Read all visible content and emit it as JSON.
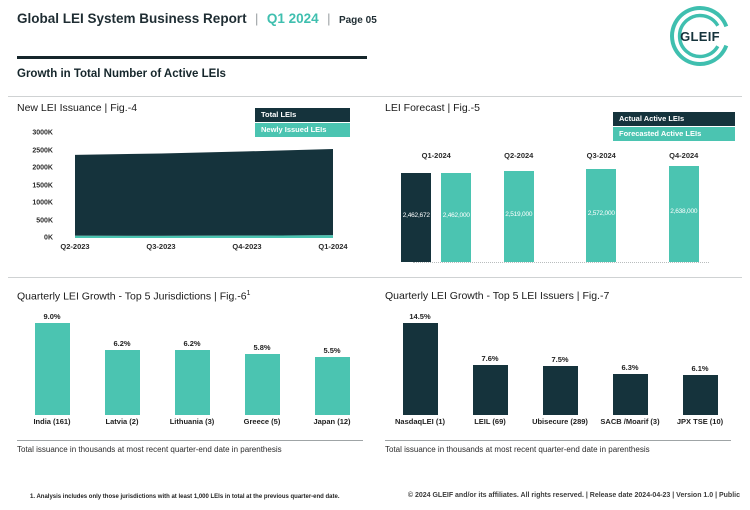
{
  "header": {
    "title": "Global LEI System Business Report",
    "separator": "|",
    "period": "Q1 2024",
    "page_label": "Page 05",
    "logo_text": "GLEIF"
  },
  "section_title": "Growth in Total Number of Active LEIs",
  "colors": {
    "dark": "#15333c",
    "teal": "#4bc4b1",
    "logo_teal": "#3fbfaf"
  },
  "chart_data": [
    {
      "id": "fig4",
      "type": "area",
      "title": "New LEI Issuance | Fig.-4",
      "x": [
        "Q2-2023",
        "Q3-2023",
        "Q4-2023",
        "Q1-2024"
      ],
      "unit": "thousands (K)",
      "series": [
        {
          "name": "Total LEIs",
          "color_key": "dark",
          "values_k": [
            2310,
            2355,
            2405,
            2463
          ]
        },
        {
          "name": "Newly Issued LEIs",
          "color_key": "teal",
          "values_k": [
            63,
            60,
            68,
            79
          ]
        }
      ],
      "stacked": true,
      "ylabels": [
        "3000K",
        "2500K",
        "2000K",
        "1500K",
        "1000K",
        "500K",
        "0K"
      ],
      "ylim_k": [
        0,
        3000
      ],
      "legend": [
        "Total LEIs",
        "Newly Issued LEIs"
      ],
      "legend_position": "top-right",
      "grid": false
    },
    {
      "id": "fig5",
      "type": "bar",
      "title": "LEI Forecast | Fig.-5",
      "categories": [
        "Q1-2024",
        "Q2-2024",
        "Q3-2024",
        "Q4-2024"
      ],
      "legend": [
        "Actual Active LEIs",
        "Forecasted Active LEIs"
      ],
      "legend_position": "top-right",
      "bars": [
        {
          "group": "Q1-2024",
          "series": "Actual Active LEIs",
          "color_key": "dark",
          "label": "2,462,672",
          "value": 2462672
        },
        {
          "group": "Q1-2024",
          "series": "Forecasted Active LEIs",
          "color_key": "teal",
          "label": "2,462,000",
          "value": 2462000
        },
        {
          "group": "Q2-2024",
          "series": "Forecasted Active LEIs",
          "color_key": "teal",
          "label": "2,519,000",
          "value": 2519000
        },
        {
          "group": "Q3-2024",
          "series": "Forecasted Active LEIs",
          "color_key": "teal",
          "label": "2,572,000",
          "value": 2572000
        },
        {
          "group": "Q4-2024",
          "series": "Forecasted Active LEIs",
          "color_key": "teal",
          "label": "2,638,000",
          "value": 2638000
        }
      ]
    },
    {
      "id": "fig6",
      "type": "bar",
      "title": "Quarterly LEI Growth - Top 5 Jurisdictions | Fig.-6",
      "title_superscript": "1",
      "color_key": "teal",
      "categories": [
        "India (161)",
        "Latvia (2)",
        "Lithuania (3)",
        "Greece (5)",
        "Japan (12)"
      ],
      "values_pct": [
        9.0,
        6.2,
        6.2,
        5.8,
        5.5
      ],
      "value_labels": [
        "9.0%",
        "6.2%",
        "6.2%",
        "5.8%",
        "5.5%"
      ],
      "caption": "Total issuance in thousands at most recent quarter-end date in parenthesis"
    },
    {
      "id": "fig7",
      "type": "bar",
      "title": "Quarterly LEI Growth - Top 5 LEI Issuers | Fig.-7",
      "color_key": "dark",
      "categories": [
        "NasdaqLEI (1)",
        "LEIL (69)",
        "Ubisecure (289)",
        "SACB /Moarif (3)",
        "JPX TSE (10)"
      ],
      "values_pct": [
        14.5,
        7.6,
        7.5,
        6.3,
        6.1
      ],
      "value_labels": [
        "14.5%",
        "7.6%",
        "7.5%",
        "6.3%",
        "6.1%"
      ],
      "caption": "Total issuance in thousands at most recent quarter-end date in parenthesis"
    }
  ],
  "footnote": "1. Analysis includes only those jurisdictions with at least 1,000 LEIs in total at the previous quarter-end date.",
  "footer": "© 2024 GLEIF and/or its affiliates. All rights reserved. | Release date 2024-04-23 | Version 1.0 | Public"
}
